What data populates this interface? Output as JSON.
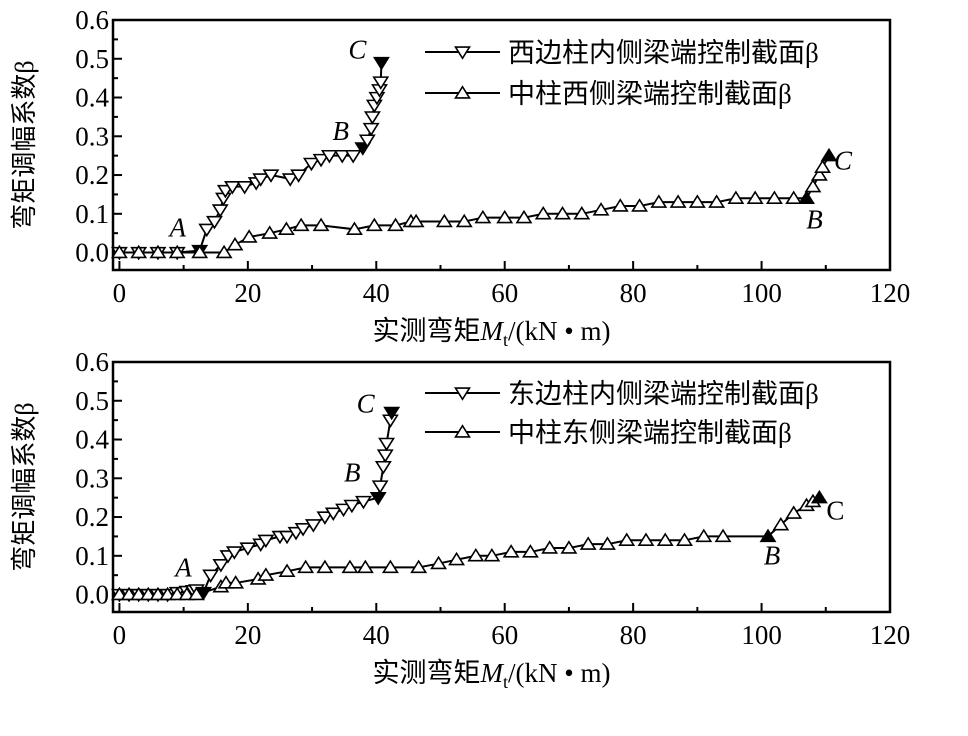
{
  "chart_data": [
    {
      "type": "line",
      "xlabel": "实测弯矩",
      "xlabel_symbol": "M",
      "xlabel_sub": "t",
      "xlabel_unit": "/(kN • m)",
      "ylabel": "弯矩调幅系数β",
      "xlim": [
        -1,
        120
      ],
      "ylim": [
        -0.045,
        0.6
      ],
      "xticks": [
        "0",
        "20",
        "40",
        "60",
        "80",
        "100",
        "120"
      ],
      "yticks": [
        "0.0",
        "0.1",
        "0.2",
        "0.3",
        "0.4",
        "0.5",
        "0.6"
      ],
      "grid": false,
      "legend_position": "top-right",
      "series": [
        {
          "name": "西边柱内侧梁端控制截面β",
          "marker": "triangle-down",
          "x": [
            0,
            3,
            6,
            9,
            12.5,
            13.6,
            14.8,
            15.7,
            16.2,
            16.5,
            17.6,
            19.5,
            21.3,
            22,
            23.6,
            26.6,
            27.9,
            29.9,
            31.4,
            32.7,
            34.7,
            36.4,
            37.9,
            38.6,
            39.2,
            39.4,
            39.7,
            40.1,
            40.5,
            40.7,
            40.8
          ],
          "y": [
            0,
            0,
            0,
            0,
            0.005,
            0.06,
            0.08,
            0.11,
            0.14,
            0.16,
            0.17,
            0.17,
            0.18,
            0.19,
            0.2,
            0.19,
            0.2,
            0.23,
            0.24,
            0.25,
            0.25,
            0.25,
            0.27,
            0.29,
            0.32,
            0.35,
            0.38,
            0.4,
            0.42,
            0.44,
            0.49
          ],
          "filled_points": {
            "A": 4,
            "B": 22,
            "C": 30
          }
        },
        {
          "name": "中柱西侧梁端控制截面β",
          "marker": "triangle-up",
          "x": [
            0,
            3,
            6,
            9,
            12.5,
            16.3,
            18,
            20.2,
            23.4,
            26,
            28.3,
            31.4,
            36.6,
            39.7,
            43,
            45.4,
            46.2,
            50.6,
            53.7,
            56.6,
            60,
            63,
            66,
            69,
            72,
            75,
            78,
            81,
            84,
            87,
            90,
            93,
            96,
            99,
            102,
            105,
            107,
            108,
            109,
            109.5,
            110.5
          ],
          "y": [
            0,
            0,
            0,
            0,
            0,
            0,
            0.02,
            0.04,
            0.05,
            0.06,
            0.07,
            0.07,
            0.06,
            0.07,
            0.07,
            0.08,
            0.08,
            0.08,
            0.08,
            0.09,
            0.09,
            0.09,
            0.1,
            0.1,
            0.1,
            0.11,
            0.12,
            0.12,
            0.13,
            0.13,
            0.13,
            0.13,
            0.14,
            0.14,
            0.14,
            0.14,
            0.14,
            0.17,
            0.2,
            0.22,
            0.25
          ],
          "filled_points": {
            "B": 36,
            "C": 40
          }
        }
      ],
      "annotations": [
        {
          "text": "A",
          "near": "series0-A",
          "italic": true
        },
        {
          "text": "B",
          "near": "series0-B",
          "italic": true
        },
        {
          "text": "C",
          "near": "series0-C",
          "italic": true
        },
        {
          "text": "B",
          "near": "series1-B",
          "italic": true
        },
        {
          "text": "C",
          "near": "series1-C",
          "italic": true
        }
      ]
    },
    {
      "type": "line",
      "xlabel": "实测弯矩",
      "xlabel_symbol": "M",
      "xlabel_sub": "t",
      "xlabel_unit": "/(kN • m)",
      "ylabel": "弯矩调幅系数β",
      "xlim": [
        -1,
        120
      ],
      "ylim": [
        -0.045,
        0.6
      ],
      "xticks": [
        "0",
        "20",
        "40",
        "60",
        "80",
        "100",
        "120"
      ],
      "yticks": [
        "0.0",
        "0.1",
        "0.2",
        "0.3",
        "0.4",
        "0.5",
        "0.6"
      ],
      "grid": false,
      "legend_position": "top-right",
      "series": [
        {
          "name": "东边柱内侧梁端控制截面β",
          "marker": "triangle-down",
          "x": [
            0,
            1.5,
            3,
            4.5,
            6,
            7.5,
            9,
            10.5,
            11.5,
            12,
            13.1,
            14.2,
            15.8,
            16.9,
            17.9,
            20,
            22,
            22.8,
            25,
            26.1,
            27.5,
            28.6,
            30.2,
            32,
            33.3,
            34.9,
            36.2,
            38,
            40.3,
            40.6,
            41.1,
            41.4,
            41.6,
            42.2,
            42.4
          ],
          "y": [
            0,
            0,
            0,
            0,
            0,
            0,
            0.005,
            0.008,
            0.01,
            0.012,
            0.005,
            0.05,
            0.077,
            0.1,
            0.11,
            0.12,
            0.13,
            0.14,
            0.15,
            0.15,
            0.16,
            0.17,
            0.18,
            0.2,
            0.21,
            0.22,
            0.23,
            0.24,
            0.25,
            0.28,
            0.33,
            0.36,
            0.39,
            0.45,
            0.47
          ],
          "filled_points": {
            "A": 10,
            "B": 28,
            "C": 34
          }
        },
        {
          "name": "中柱东侧梁端控制截面β",
          "marker": "triangle-up",
          "x": [
            0,
            1.5,
            3,
            4.5,
            6,
            7.5,
            9,
            10.5,
            12,
            15.8,
            16.6,
            18.1,
            21.6,
            22.8,
            26.1,
            29,
            32,
            35.9,
            38.3,
            42.2,
            46.6,
            49.7,
            52.5,
            55.5,
            58,
            61,
            64,
            67,
            70,
            73,
            76,
            79,
            82,
            85,
            88,
            91,
            94,
            101,
            103,
            105,
            107,
            108,
            109
          ],
          "y": [
            0,
            0,
            0,
            0,
            0,
            0,
            0,
            0,
            0,
            0.02,
            0.03,
            0.03,
            0.04,
            0.05,
            0.06,
            0.07,
            0.07,
            0.07,
            0.07,
            0.07,
            0.07,
            0.08,
            0.09,
            0.1,
            0.1,
            0.11,
            0.11,
            0.12,
            0.12,
            0.13,
            0.13,
            0.14,
            0.14,
            0.14,
            0.14,
            0.15,
            0.15,
            0.15,
            0.18,
            0.21,
            0.23,
            0.24,
            0.25
          ],
          "filled_points": {
            "B": 37,
            "C": 42
          }
        }
      ],
      "annotations": [
        {
          "text": "A",
          "near": "series0-A",
          "italic": true
        },
        {
          "text": "B",
          "near": "series0-B",
          "italic": true
        },
        {
          "text": "C",
          "near": "series0-C",
          "italic": true
        },
        {
          "text": "B",
          "near": "series1-B",
          "italic": true
        },
        {
          "text": "C",
          "near": "series1-C",
          "italic": false
        }
      ]
    }
  ]
}
